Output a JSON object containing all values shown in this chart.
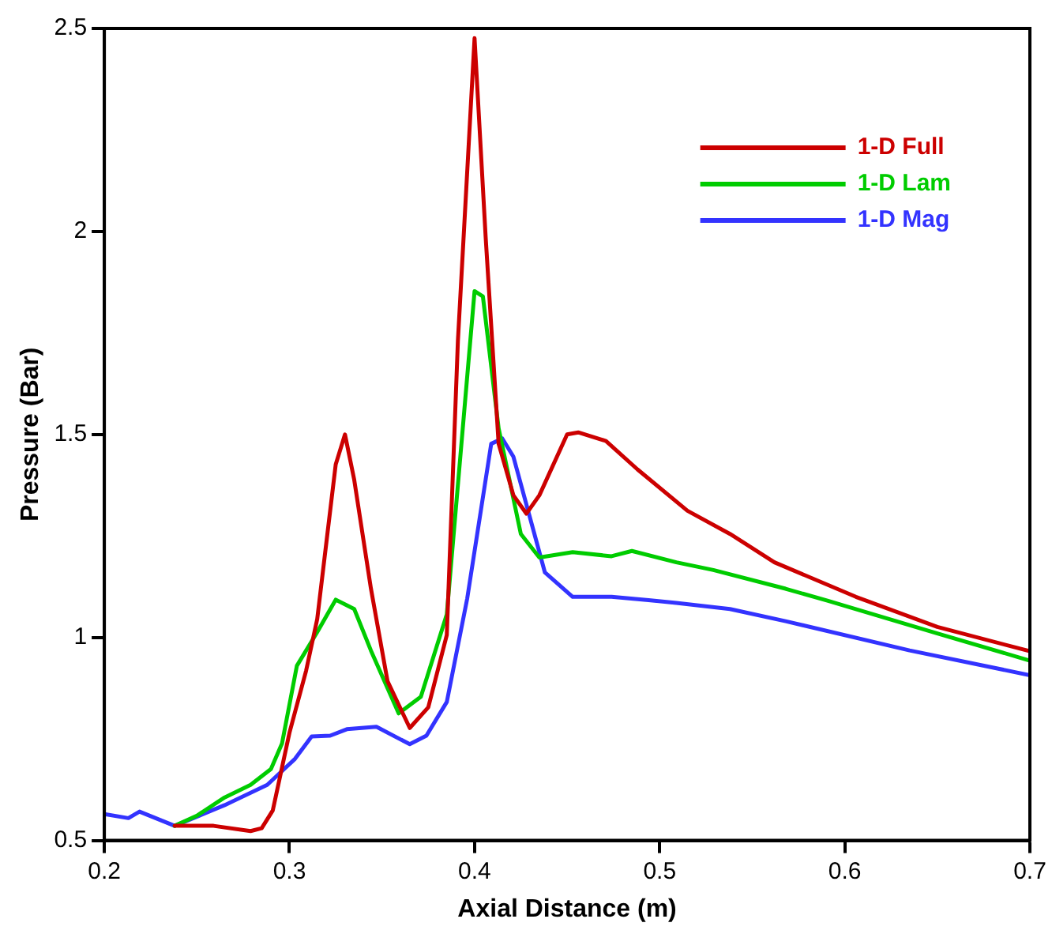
{
  "chart_data": {
    "type": "line",
    "xlabel": "Axial Distance (m)",
    "ylabel": "Pressure (Bar)",
    "xlim": [
      0.2,
      0.7
    ],
    "ylim": [
      0.5,
      2.5
    ],
    "xticks": [
      0.2,
      0.3,
      0.4,
      0.5,
      0.6,
      0.7
    ],
    "yticks": [
      0.5,
      1,
      1.5,
      2,
      2.5
    ],
    "grid": false,
    "legend": "top right",
    "marker": "none",
    "line_style": "solid",
    "series": [
      {
        "name": "1-D Full",
        "color": "#cc0000",
        "x": [
          0.238,
          0.259,
          0.279,
          0.285,
          0.291,
          0.3,
          0.309,
          0.315,
          0.321,
          0.325,
          0.33,
          0.335,
          0.344,
          0.353,
          0.365,
          0.375,
          0.385,
          0.391,
          0.4,
          0.406,
          0.413,
          0.421,
          0.428,
          0.435,
          0.45,
          0.456,
          0.471,
          0.488,
          0.515,
          0.538,
          0.562,
          0.606,
          0.65,
          0.7
        ],
        "values": [
          0.536,
          0.536,
          0.523,
          0.53,
          0.574,
          0.765,
          0.918,
          1.045,
          1.274,
          1.426,
          1.5,
          1.388,
          1.121,
          0.892,
          0.777,
          0.828,
          1.006,
          1.73,
          2.476,
          1.986,
          1.477,
          1.35,
          1.305,
          1.35,
          1.5,
          1.505,
          1.484,
          1.414,
          1.312,
          1.255,
          1.185,
          1.1,
          1.026,
          0.966
        ]
      },
      {
        "name": "1-D Lam",
        "color": "#00cc00",
        "x": [
          0.238,
          0.25,
          0.265,
          0.279,
          0.29,
          0.296,
          0.304,
          0.315,
          0.325,
          0.335,
          0.344,
          0.359,
          0.371,
          0.385,
          0.4,
          0.4045,
          0.413,
          0.425,
          0.435,
          0.453,
          0.474,
          0.485,
          0.509,
          0.529,
          0.568,
          0.591,
          0.65,
          0.7
        ],
        "values": [
          0.536,
          0.561,
          0.606,
          0.637,
          0.676,
          0.739,
          0.93,
          1.013,
          1.093,
          1.07,
          0.968,
          0.813,
          0.854,
          1.057,
          1.853,
          1.84,
          1.515,
          1.255,
          1.197,
          1.21,
          1.2,
          1.213,
          1.185,
          1.166,
          1.12,
          1.09,
          1.01,
          0.943
        ]
      },
      {
        "name": "1-D Mag",
        "color": "#3333ff",
        "x": [
          0.2,
          0.213,
          0.219,
          0.238,
          0.265,
          0.288,
          0.303,
          0.312,
          0.322,
          0.331,
          0.347,
          0.365,
          0.374,
          0.385,
          0.396,
          0.409,
          0.415,
          0.421,
          0.438,
          0.453,
          0.474,
          0.494,
          0.509,
          0.538,
          0.568,
          0.635,
          0.7
        ],
        "values": [
          0.565,
          0.555,
          0.571,
          0.536,
          0.587,
          0.637,
          0.701,
          0.756,
          0.758,
          0.774,
          0.78,
          0.737,
          0.758,
          0.841,
          1.095,
          1.477,
          1.49,
          1.445,
          1.16,
          1.1,
          1.1,
          1.092,
          1.085,
          1.07,
          1.04,
          0.968,
          0.907
        ]
      }
    ]
  }
}
